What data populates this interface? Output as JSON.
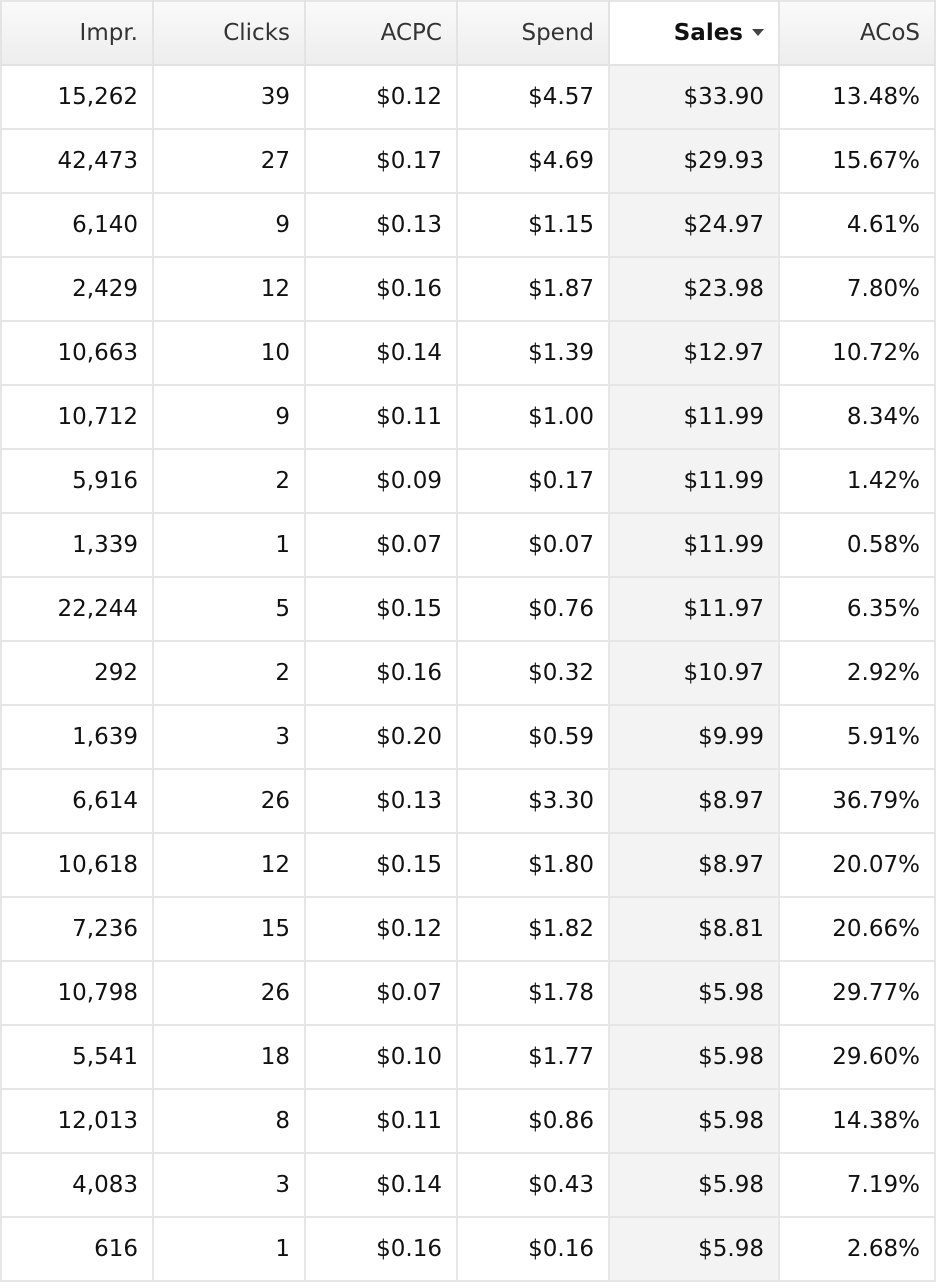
{
  "table": {
    "columns": [
      {
        "key": "impr",
        "label": "Impr.",
        "sorted": false
      },
      {
        "key": "clicks",
        "label": "Clicks",
        "sorted": false
      },
      {
        "key": "acpc",
        "label": "ACPC",
        "sorted": false
      },
      {
        "key": "spend",
        "label": "Spend",
        "sorted": false
      },
      {
        "key": "sales",
        "label": "Sales",
        "sorted": true,
        "sort_direction": "descending"
      },
      {
        "key": "acos",
        "label": "ACoS",
        "sorted": false
      }
    ],
    "rows": [
      [
        "15,262",
        "39",
        "$0.12",
        "$4.57",
        "$33.90",
        "13.48%"
      ],
      [
        "42,473",
        "27",
        "$0.17",
        "$4.69",
        "$29.93",
        "15.67%"
      ],
      [
        "6,140",
        "9",
        "$0.13",
        "$1.15",
        "$24.97",
        "4.61%"
      ],
      [
        "2,429",
        "12",
        "$0.16",
        "$1.87",
        "$23.98",
        "7.80%"
      ],
      [
        "10,663",
        "10",
        "$0.14",
        "$1.39",
        "$12.97",
        "10.72%"
      ],
      [
        "10,712",
        "9",
        "$0.11",
        "$1.00",
        "$11.99",
        "8.34%"
      ],
      [
        "5,916",
        "2",
        "$0.09",
        "$0.17",
        "$11.99",
        "1.42%"
      ],
      [
        "1,339",
        "1",
        "$0.07",
        "$0.07",
        "$11.99",
        "0.58%"
      ],
      [
        "22,244",
        "5",
        "$0.15",
        "$0.76",
        "$11.97",
        "6.35%"
      ],
      [
        "292",
        "2",
        "$0.16",
        "$0.32",
        "$10.97",
        "2.92%"
      ],
      [
        "1,639",
        "3",
        "$0.20",
        "$0.59",
        "$9.99",
        "5.91%"
      ],
      [
        "6,614",
        "26",
        "$0.13",
        "$3.30",
        "$8.97",
        "36.79%"
      ],
      [
        "10,618",
        "12",
        "$0.15",
        "$1.80",
        "$8.97",
        "20.07%"
      ],
      [
        "7,236",
        "15",
        "$0.12",
        "$1.82",
        "$8.81",
        "20.66%"
      ],
      [
        "10,798",
        "26",
        "$0.07",
        "$1.78",
        "$5.98",
        "29.77%"
      ],
      [
        "5,541",
        "18",
        "$0.10",
        "$1.77",
        "$5.98",
        "29.60%"
      ],
      [
        "12,013",
        "8",
        "$0.11",
        "$0.86",
        "$5.98",
        "14.38%"
      ],
      [
        "4,083",
        "3",
        "$0.14",
        "$0.43",
        "$5.98",
        "7.19%"
      ],
      [
        "616",
        "1",
        "$0.16",
        "$0.16",
        "$5.98",
        "2.68%"
      ]
    ]
  },
  "colors": {
    "header_bg": "#f0f0f0",
    "sorted_column_bg": "#f3f3f3",
    "grid_line": "#e6e6e6",
    "text": "#111111"
  }
}
